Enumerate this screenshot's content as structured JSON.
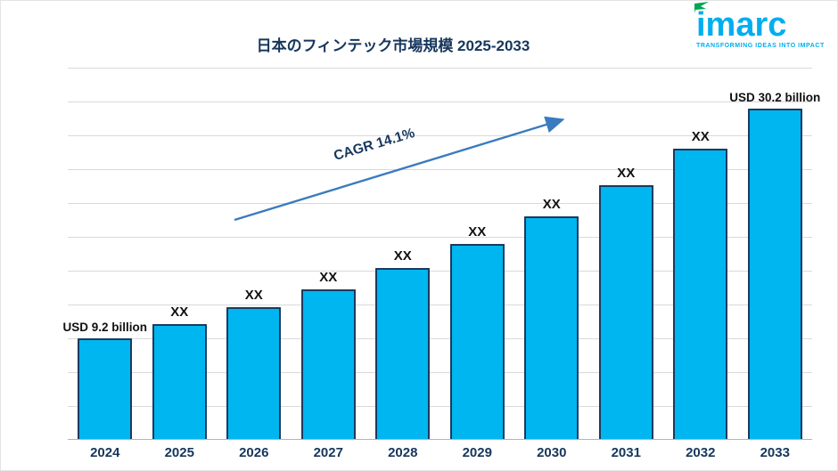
{
  "header": {
    "title": "日本のフィンテック市場規模 2025-2033"
  },
  "logo": {
    "text": "imarc",
    "tagline": "TRANSFORMING IDEAS INTO IMPACT",
    "brand_color": "#00aeef",
    "flag_color": "#00a651"
  },
  "chart_data": {
    "type": "bar",
    "title": "日本のフィンテック市場規模 2025-2033",
    "categories": [
      "2024",
      "2025",
      "2026",
      "2027",
      "2028",
      "2029",
      "2030",
      "2031",
      "2032",
      "2033"
    ],
    "values": [
      9.2,
      10.5,
      12.0,
      13.7,
      15.6,
      17.8,
      20.3,
      23.2,
      26.5,
      30.2
    ],
    "values_note": "intermediate values estimated from bar heights / CAGR 14.1%; chart displays XX placeholders",
    "bar_labels": [
      "USD 9.2 billion",
      "XX",
      "XX",
      "XX",
      "XX",
      "XX",
      "XX",
      "XX",
      "XX",
      "USD 30.2 billion"
    ],
    "annotation": "CAGR 14.1%",
    "xlabel": "",
    "ylabel": "",
    "ylim": [
      0,
      34
    ],
    "grid": true,
    "legend": false,
    "bar_color": "#00b6f0",
    "bar_border_color": "#1b3a5f",
    "gridline_color": "#d9d9d9",
    "arrow_color": "#3a7bbf"
  }
}
